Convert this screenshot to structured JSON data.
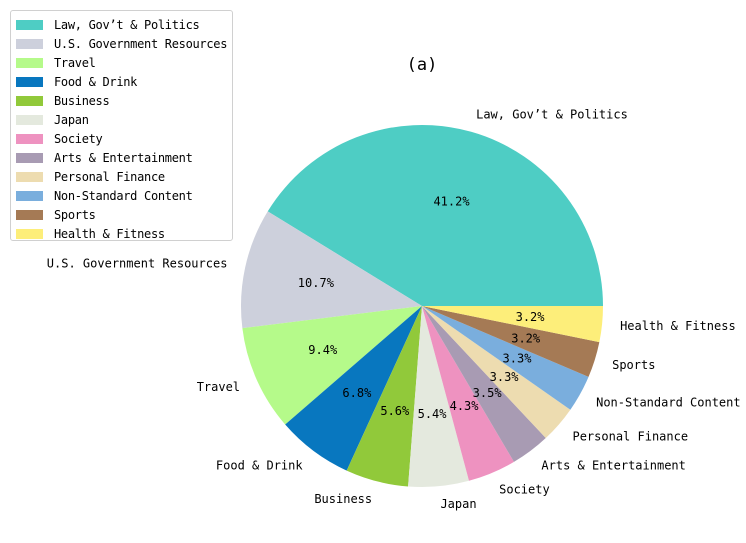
{
  "chart_data": {
    "type": "pie",
    "title": "(a)",
    "legend_position": "upper left",
    "start_angle_deg": 0,
    "direction": "counterclockwise",
    "slices": [
      {
        "label": "Law, Gov’t & Politics",
        "value": 41.2,
        "pct_label": "41.2%",
        "color": "#4ecdc4"
      },
      {
        "label": "U.S. Government Resources",
        "value": 10.7,
        "pct_label": "10.7%",
        "color": "#cdd0dc"
      },
      {
        "label": "Travel",
        "value": 9.4,
        "pct_label": "9.4%",
        "color": "#b5fa8a"
      },
      {
        "label": "Food & Drink",
        "value": 6.8,
        "pct_label": "6.8%",
        "color": "#0877bf"
      },
      {
        "label": "Business",
        "value": 5.6,
        "pct_label": "5.6%",
        "color": "#91c93a"
      },
      {
        "label": "Japan",
        "value": 5.4,
        "pct_label": "5.4%",
        "color": "#e4e9de"
      },
      {
        "label": "Society",
        "value": 4.3,
        "pct_label": "4.3%",
        "color": "#ee92c0"
      },
      {
        "label": "Arts & Entertainment",
        "value": 3.5,
        "pct_label": "3.5%",
        "color": "#a89bb3"
      },
      {
        "label": "Personal Finance",
        "value": 3.3,
        "pct_label": "3.3%",
        "color": "#eddcb0"
      },
      {
        "label": "Non-Standard Content",
        "value": 3.3,
        "pct_label": "3.3%",
        "color": "#7aaedd"
      },
      {
        "label": "Sports",
        "value": 3.2,
        "pct_label": "3.2%",
        "color": "#a57a55"
      },
      {
        "label": "Health & Fitness",
        "value": 3.2,
        "pct_label": "3.2%",
        "color": "#fdee7a"
      }
    ]
  },
  "legend": {
    "items": [
      {
        "label": "Law, Gov’t & Politics",
        "color": "#4ecdc4"
      },
      {
        "label": "U.S. Government Resources",
        "color": "#cdd0dc"
      },
      {
        "label": "Travel",
        "color": "#b5fa8a"
      },
      {
        "label": "Food & Drink",
        "color": "#0877bf"
      },
      {
        "label": "Business",
        "color": "#91c93a"
      },
      {
        "label": "Japan",
        "color": "#e4e9de"
      },
      {
        "label": "Society",
        "color": "#ee92c0"
      },
      {
        "label": "Arts & Entertainment",
        "color": "#a89bb3"
      },
      {
        "label": "Personal Finance",
        "color": "#eddcb0"
      },
      {
        "label": "Non-Standard Content",
        "color": "#7aaedd"
      },
      {
        "label": "Sports",
        "color": "#a57a55"
      },
      {
        "label": "Health & Fitness",
        "color": "#fdee7a"
      }
    ]
  }
}
